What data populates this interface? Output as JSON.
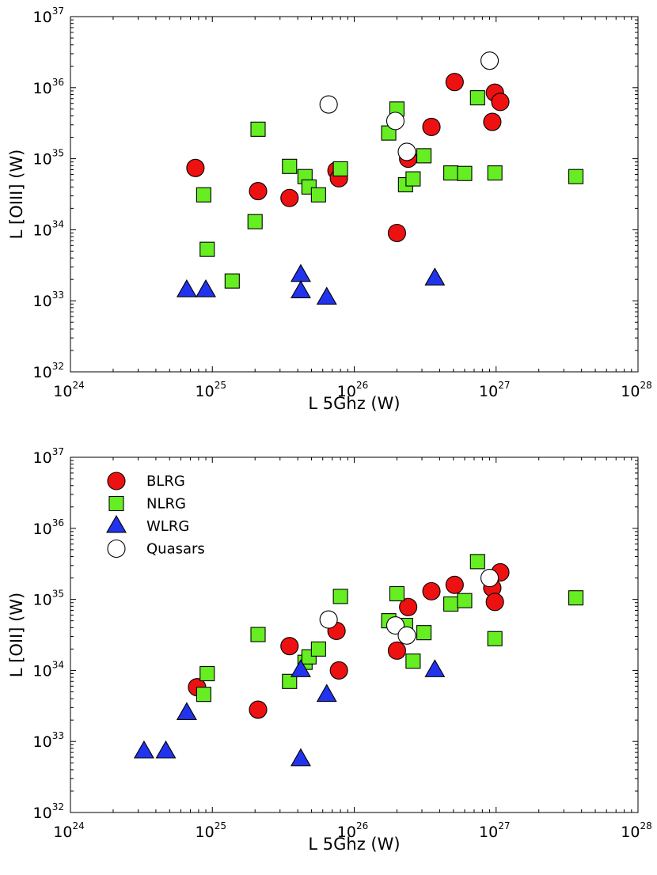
{
  "chart_data": [
    {
      "type": "scatter",
      "xlabel": "L 5Ghz (W)",
      "ylabel": "L [OIII] (W)",
      "xscale": "log",
      "yscale": "log",
      "xlim": [
        1e+24,
        1e+28
      ],
      "ylim": [
        1e+32,
        1e+37
      ],
      "x_ticks": [
        {
          "base": "10",
          "exp": "24"
        },
        {
          "base": "10",
          "exp": "25"
        },
        {
          "base": "10",
          "exp": "26"
        },
        {
          "base": "10",
          "exp": "27"
        },
        {
          "base": "10",
          "exp": "28"
        }
      ],
      "y_ticks": [
        {
          "base": "10",
          "exp": "32"
        },
        {
          "base": "10",
          "exp": "33"
        },
        {
          "base": "10",
          "exp": "34"
        },
        {
          "base": "10",
          "exp": "35"
        },
        {
          "base": "10",
          "exp": "36"
        },
        {
          "base": "10",
          "exp": "37"
        }
      ],
      "legend": null,
      "series": [
        {
          "marker": "circle",
          "color": "#ee1111",
          "points": [
            [
              7.6e+24,
              7.4e+34
            ],
            [
              2.1e+25,
              3.5e+34
            ],
            [
              3.5e+25,
              2.8e+34
            ],
            [
              7.5e+25,
              6.8e+34
            ],
            [
              7.8e+25,
              5.3e+34
            ],
            [
              2e+26,
              9e+33
            ],
            [
              2.4e+26,
              1e+35
            ],
            [
              3.5e+26,
              2.8e+35
            ],
            [
              5.1e+26,
              1.2e+36
            ],
            [
              9.4e+26,
              3.3e+35
            ],
            [
              9.8e+26,
              8.5e+35
            ],
            [
              1.07e+27,
              6.3e+35
            ]
          ]
        },
        {
          "marker": "square",
          "color": "#66ee22",
          "points": [
            [
              8.7e+24,
              3.1e+34
            ],
            [
              9.2e+24,
              5.3e+33
            ],
            [
              1.38e+25,
              1.9e+33
            ],
            [
              2e+25,
              1.3e+34
            ],
            [
              2.1e+25,
              2.6e+35
            ],
            [
              3.5e+25,
              7.8e+34
            ],
            [
              4.5e+25,
              5.6e+34
            ],
            [
              4.8e+25,
              4e+34
            ],
            [
              5.6e+25,
              3.1e+34
            ],
            [
              8e+25,
              7.2e+34
            ],
            [
              1.75e+26,
              2.3e+35
            ],
            [
              2e+26,
              5e+35
            ],
            [
              2.3e+26,
              4.3e+34
            ],
            [
              2.6e+26,
              5.2e+34
            ],
            [
              3.1e+26,
              1.1e+35
            ],
            [
              4.8e+26,
              6.3e+34
            ],
            [
              6e+26,
              6.2e+34
            ],
            [
              7.4e+26,
              7.2e+35
            ],
            [
              9.8e+26,
              6.3e+34
            ],
            [
              3.65e+27,
              5.6e+34
            ]
          ]
        },
        {
          "marker": "triangle",
          "color": "#2233ee",
          "points": [
            [
              6.6e+24,
              1.4e+33
            ],
            [
              9e+24,
              1.4e+33
            ],
            [
              4.2e+25,
              2.3e+33
            ],
            [
              4.2e+25,
              1.35e+33
            ],
            [
              6.4e+25,
              1.1e+33
            ],
            [
              3.7e+26,
              2.05e+33
            ]
          ]
        },
        {
          "marker": "circle",
          "color": "#ffffff",
          "points": [
            [
              6.6e+25,
              5.8e+35
            ],
            [
              1.95e+26,
              3.4e+35
            ],
            [
              2.35e+26,
              1.25e+35
            ],
            [
              9e+26,
              2.4e+36
            ]
          ]
        }
      ]
    },
    {
      "type": "scatter",
      "xlabel": "L 5Ghz (W)",
      "ylabel": "L [OII] (W)",
      "xscale": "log",
      "yscale": "log",
      "xlim": [
        1e+24,
        1e+28
      ],
      "ylim": [
        1e+32,
        1e+37
      ],
      "x_ticks": [
        {
          "base": "10",
          "exp": "24"
        },
        {
          "base": "10",
          "exp": "25"
        },
        {
          "base": "10",
          "exp": "26"
        },
        {
          "base": "10",
          "exp": "27"
        },
        {
          "base": "10",
          "exp": "28"
        }
      ],
      "y_ticks": [
        {
          "base": "10",
          "exp": "32"
        },
        {
          "base": "10",
          "exp": "33"
        },
        {
          "base": "10",
          "exp": "34"
        },
        {
          "base": "10",
          "exp": "35"
        },
        {
          "base": "10",
          "exp": "36"
        },
        {
          "base": "10",
          "exp": "37"
        }
      ],
      "legend": "top-left",
      "series": [
        {
          "name": "BLRG",
          "marker": "circle",
          "color": "#ee1111",
          "points": [
            [
              7.8e+24,
              5.8e+33
            ],
            [
              2.1e+25,
              2.8e+33
            ],
            [
              3.5e+25,
              2.2e+34
            ],
            [
              7.5e+25,
              3.6e+34
            ],
            [
              7.8e+25,
              1e+34
            ],
            [
              2e+26,
              1.9e+34
            ],
            [
              2.4e+26,
              7.8e+34
            ],
            [
              3.5e+26,
              1.3e+35
            ],
            [
              5.1e+26,
              1.6e+35
            ],
            [
              9.4e+26,
              1.45e+35
            ],
            [
              9.8e+26,
              9.2e+34
            ],
            [
              1.07e+27,
              2.4e+35
            ]
          ]
        },
        {
          "name": "NLRG",
          "marker": "square",
          "color": "#66ee22",
          "points": [
            [
              8.7e+24,
              4.6e+33
            ],
            [
              9.2e+24,
              9e+33
            ],
            [
              2.1e+25,
              3.2e+34
            ],
            [
              3.5e+25,
              7e+33
            ],
            [
              4.5e+25,
              1.3e+34
            ],
            [
              4.8e+25,
              1.55e+34
            ],
            [
              5.6e+25,
              2e+34
            ],
            [
              8e+25,
              1.1e+35
            ],
            [
              1.75e+26,
              5e+34
            ],
            [
              2e+26,
              1.2e+35
            ],
            [
              2.3e+26,
              4.3e+34
            ],
            [
              2.6e+26,
              1.35e+34
            ],
            [
              3.1e+26,
              3.4e+34
            ],
            [
              4.8e+26,
              8.6e+34
            ],
            [
              6e+26,
              9.6e+34
            ],
            [
              7.4e+26,
              3.4e+35
            ],
            [
              9.8e+26,
              2.8e+34
            ],
            [
              3.65e+27,
              1.05e+35
            ]
          ]
        },
        {
          "name": "WLRG",
          "marker": "triangle",
          "color": "#2233ee",
          "points": [
            [
              3.3e+24,
              7.2e+32
            ],
            [
              4.7e+24,
              7.2e+32
            ],
            [
              6.6e+24,
              2.5e+33
            ],
            [
              4.2e+25,
              1e+34
            ],
            [
              4.2e+25,
              5.6e+32
            ],
            [
              6.4e+25,
              4.5e+33
            ],
            [
              3.7e+26,
              1e+34
            ]
          ]
        },
        {
          "name": "Quasars",
          "marker": "circle",
          "color": "#ffffff",
          "points": [
            [
              6.6e+25,
              5.2e+34
            ],
            [
              1.95e+26,
              4.3e+34
            ],
            [
              2.35e+26,
              3.1e+34
            ],
            [
              9e+26,
              2e+35
            ]
          ]
        }
      ]
    }
  ]
}
